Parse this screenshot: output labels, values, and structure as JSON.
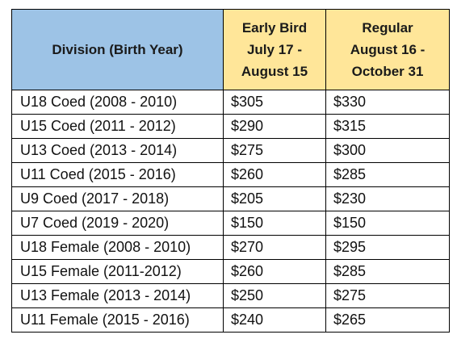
{
  "headers": {
    "division": "Division (Birth Year)",
    "early_bird": [
      "Early Bird",
      "July 17 -",
      "August 15"
    ],
    "regular": [
      "Regular",
      "August 16 -",
      "October 31"
    ]
  },
  "rows": [
    {
      "division": "U18 Coed (2008 - 2010)",
      "early_bird": "$305",
      "regular": "$330"
    },
    {
      "division": "U15 Coed (2011 - 2012)",
      "early_bird": "$290",
      "regular": "$315"
    },
    {
      "division": "U13 Coed (2013 - 2014)",
      "early_bird": "$275",
      "regular": "$300"
    },
    {
      "division": "U11 Coed (2015 - 2016)",
      "early_bird": "$260",
      "regular": "$285"
    },
    {
      "division": "U9 Coed (2017 - 2018)",
      "early_bird": "$205",
      "regular": "$230"
    },
    {
      "division": "U7 Coed (2019 - 2020)",
      "early_bird": "$150",
      "regular": "$150"
    },
    {
      "division": "U18 Female (2008 - 2010)",
      "early_bird": "$270",
      "regular": "$295"
    },
    {
      "division": "U15 Female (2011-2012)",
      "early_bird": "$260",
      "regular": "$285"
    },
    {
      "division": "U13 Female (2013 - 2014)",
      "early_bird": "$250",
      "regular": "$275"
    },
    {
      "division": "U11 Female (2015 - 2016)",
      "early_bird": "$240",
      "regular": "$265"
    }
  ],
  "colors": {
    "division_header_bg": "#9dc3e6",
    "price_header_bg": "#ffe699",
    "border": "#000000"
  }
}
